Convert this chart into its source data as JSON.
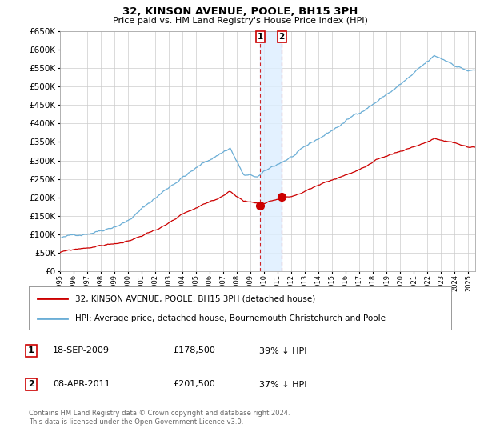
{
  "title": "32, KINSON AVENUE, POOLE, BH15 3PH",
  "subtitle": "Price paid vs. HM Land Registry's House Price Index (HPI)",
  "legend_line1": "32, KINSON AVENUE, POOLE, BH15 3PH (detached house)",
  "legend_line2": "HPI: Average price, detached house, Bournemouth Christchurch and Poole",
  "sale1_label": "1",
  "sale1_date": "18-SEP-2009",
  "sale1_price": "£178,500",
  "sale1_hpi": "39% ↓ HPI",
  "sale2_label": "2",
  "sale2_date": "08-APR-2011",
  "sale2_price": "£201,500",
  "sale2_hpi": "37% ↓ HPI",
  "footer": "Contains HM Land Registry data © Crown copyright and database right 2024.\nThis data is licensed under the Open Government Licence v3.0.",
  "ylim": [
    0,
    650000
  ],
  "yticks": [
    0,
    50000,
    100000,
    150000,
    200000,
    250000,
    300000,
    350000,
    400000,
    450000,
    500000,
    550000,
    600000,
    650000
  ],
  "hpi_color": "#6baed6",
  "price_color": "#cc0000",
  "sale_marker_color": "#cc0000",
  "shade_color": "#ddeeff",
  "background_color": "#ffffff",
  "grid_color": "#cccccc",
  "sale1_year": 2009.708,
  "sale2_year": 2011.292,
  "sale1_price_val": 178500,
  "sale2_price_val": 201500
}
